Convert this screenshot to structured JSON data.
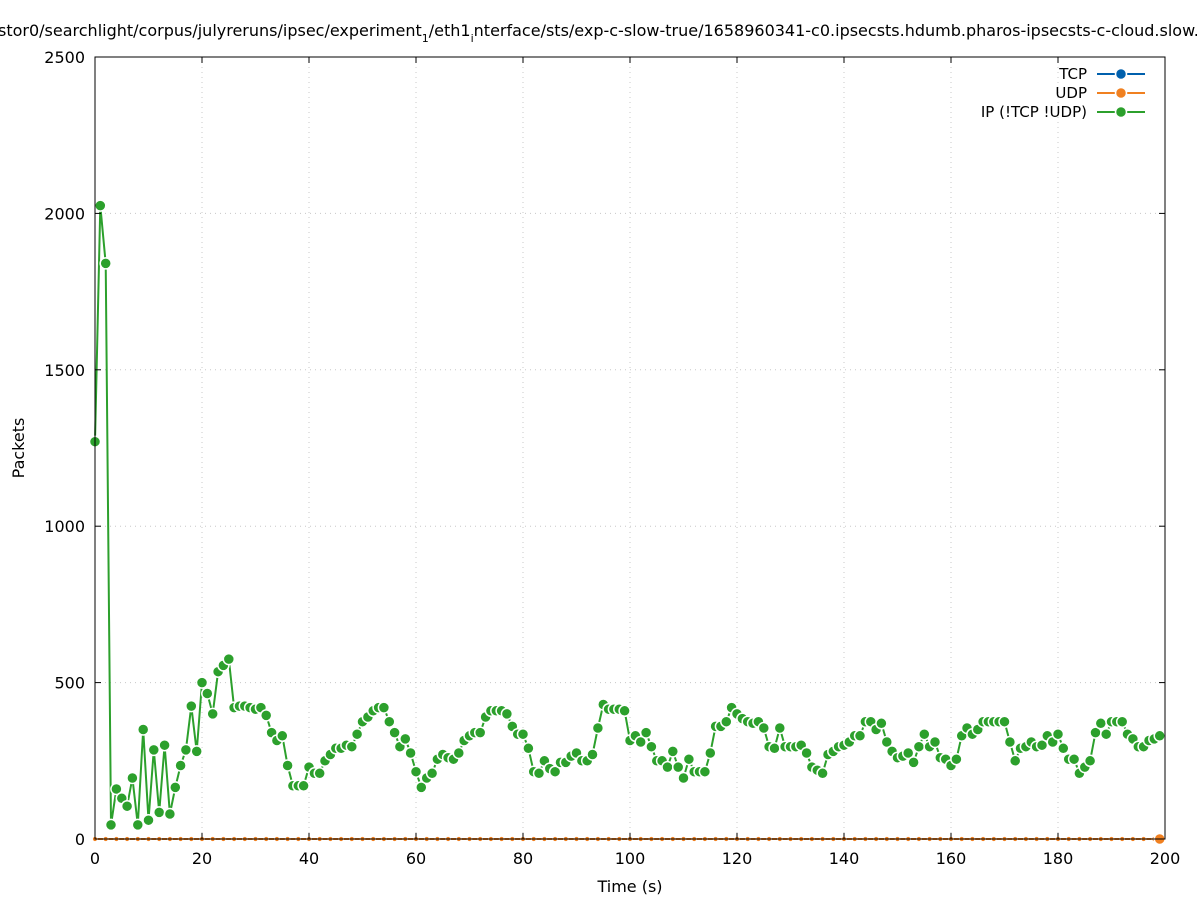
{
  "chart_data": {
    "type": "line",
    "title": "stor0/searchlight/corpus/julyreruns/ipsec/experiment",
    "title_sub": "1",
    "title_rest": "/eth1",
    "title_sub2": "i",
    "title_tail": "nterface/sts/exp-c-slow-true/1658960341-c0.ipsecsts.hdumb.pharos-ipsecsts-c-cloud.slow.",
    "xlabel": "Time (s)",
    "ylabel": "Packets",
    "xlim": [
      0,
      200
    ],
    "ylim": [
      0,
      2500
    ],
    "x_ticks": [
      "0",
      "20",
      "40",
      "60",
      "80",
      "100",
      "120",
      "140",
      "160",
      "180",
      "200"
    ],
    "y_ticks": [
      "0",
      "500",
      "1000",
      "1500",
      "2000",
      "2500"
    ],
    "grid": true,
    "legend_position": "top-right",
    "series": [
      {
        "name": "TCP",
        "color": "#0060ad",
        "x": [],
        "values": []
      },
      {
        "name": "UDP",
        "color": "#f08020",
        "x": [
          0,
          2,
          4,
          6,
          8,
          10,
          12,
          14,
          16,
          18,
          20,
          22,
          24,
          26,
          28,
          30,
          32,
          34,
          36,
          38,
          40,
          42,
          44,
          46,
          48,
          50,
          52,
          54,
          56,
          58,
          60,
          62,
          64,
          66,
          68,
          70,
          72,
          74,
          76,
          78,
          80,
          82,
          84,
          86,
          88,
          90,
          92,
          94,
          96,
          98,
          100,
          102,
          104,
          106,
          108,
          110,
          112,
          114,
          116,
          118,
          120,
          122,
          124,
          126,
          128,
          130,
          132,
          134,
          136,
          138,
          140,
          142,
          144,
          146,
          148,
          150,
          152,
          154,
          156,
          158,
          160,
          162,
          164,
          166,
          168,
          170,
          172,
          174,
          176,
          178,
          180,
          182,
          184,
          186,
          188,
          190,
          192,
          194,
          196,
          198,
          199
        ],
        "values": [
          0,
          0,
          0,
          0,
          0,
          0,
          0,
          0,
          0,
          0,
          0,
          0,
          0,
          0,
          0,
          0,
          0,
          0,
          0,
          0,
          0,
          0,
          0,
          0,
          0,
          0,
          0,
          0,
          0,
          0,
          0,
          0,
          0,
          0,
          0,
          0,
          0,
          0,
          0,
          0,
          0,
          0,
          0,
          0,
          0,
          0,
          0,
          0,
          0,
          0,
          0,
          0,
          0,
          0,
          0,
          0,
          0,
          0,
          0,
          0,
          0,
          0,
          0,
          0,
          0,
          0,
          0,
          0,
          0,
          0,
          0,
          0,
          0,
          0,
          0,
          0,
          0,
          0,
          0,
          0,
          0,
          0,
          0,
          0,
          0,
          0,
          0,
          0,
          0,
          0,
          0,
          0,
          0,
          0,
          0,
          0,
          0,
          0,
          0,
          0,
          0
        ]
      },
      {
        "name": "IP (!TCP  !UDP)",
        "color": "#2ca02c",
        "x": [
          0,
          1,
          2,
          3,
          4,
          5,
          6,
          7,
          8,
          9,
          10,
          11,
          12,
          13,
          14,
          15,
          16,
          17,
          18,
          19,
          20,
          21,
          22,
          23,
          24,
          25,
          26,
          27,
          28,
          29,
          30,
          31,
          32,
          33,
          34,
          35,
          36,
          37,
          38,
          39,
          40,
          41,
          42,
          43,
          44,
          45,
          46,
          47,
          48,
          49,
          50,
          51,
          52,
          53,
          54,
          55,
          56,
          57,
          58,
          59,
          60,
          61,
          62,
          63,
          64,
          65,
          66,
          67,
          68,
          69,
          70,
          71,
          72,
          73,
          74,
          75,
          76,
          77,
          78,
          79,
          80,
          81,
          82,
          83,
          84,
          85,
          86,
          87,
          88,
          89,
          90,
          91,
          92,
          93,
          94,
          95,
          96,
          97,
          98,
          99,
          100,
          101,
          102,
          103,
          104,
          105,
          106,
          107,
          108,
          109,
          110,
          111,
          112,
          113,
          114,
          115,
          116,
          117,
          118,
          119,
          120,
          121,
          122,
          123,
          124,
          125,
          126,
          127,
          128,
          129,
          130,
          131,
          132,
          133,
          134,
          135,
          136,
          137,
          138,
          139,
          140,
          141,
          142,
          143,
          144,
          145,
          146,
          147,
          148,
          149,
          150,
          151,
          152,
          153,
          154,
          155,
          156,
          157,
          158,
          159,
          160,
          161,
          162,
          163,
          164,
          165,
          166,
          167,
          168,
          169,
          170,
          171,
          172,
          173,
          174,
          175,
          176,
          177,
          178,
          179,
          180,
          181,
          182,
          183,
          184,
          185,
          186,
          187,
          188,
          189,
          190,
          191,
          192,
          193,
          194,
          195,
          196,
          197,
          198,
          199
        ],
        "values": [
          1270,
          2025,
          1840,
          45,
          160,
          130,
          105,
          195,
          45,
          350,
          60,
          285,
          85,
          300,
          80,
          165,
          235,
          285,
          425,
          280,
          500,
          465,
          400,
          535,
          555,
          575,
          420,
          425,
          425,
          420,
          415,
          420,
          395,
          340,
          315,
          330,
          235,
          170,
          170,
          170,
          230,
          210,
          210,
          250,
          270,
          290,
          290,
          300,
          295,
          335,
          375,
          390,
          410,
          420,
          420,
          375,
          340,
          295,
          320,
          275,
          215,
          165,
          195,
          210,
          255,
          270,
          260,
          255,
          275,
          315,
          330,
          340,
          340,
          390,
          410,
          410,
          410,
          400,
          360,
          335,
          335,
          290,
          215,
          210,
          250,
          225,
          215,
          245,
          245,
          265,
          275,
          250,
          250,
          270,
          355,
          430,
          415,
          415,
          415,
          410,
          315,
          330,
          310,
          340,
          295,
          250,
          250,
          230,
          280,
          230,
          195,
          255,
          215,
          215,
          215,
          275,
          360,
          360,
          375,
          420,
          400,
          385,
          375,
          370,
          375,
          355,
          295,
          290,
          355,
          295,
          295,
          295,
          300,
          275,
          230,
          220,
          210,
          270,
          280,
          295,
          300,
          310,
          330,
          330,
          375,
          375,
          350,
          370,
          310,
          280,
          260,
          265,
          275,
          245,
          295,
          335,
          295,
          310,
          260,
          255,
          235,
          255,
          330,
          355,
          335,
          350,
          375,
          375,
          375,
          375,
          375,
          310,
          250,
          290,
          295,
          310,
          295,
          300,
          330,
          310,
          335,
          290,
          255,
          255,
          210,
          230,
          250,
          340,
          370,
          335,
          375,
          375,
          375,
          335,
          320,
          295,
          295,
          315,
          320,
          330
        ]
      }
    ]
  }
}
